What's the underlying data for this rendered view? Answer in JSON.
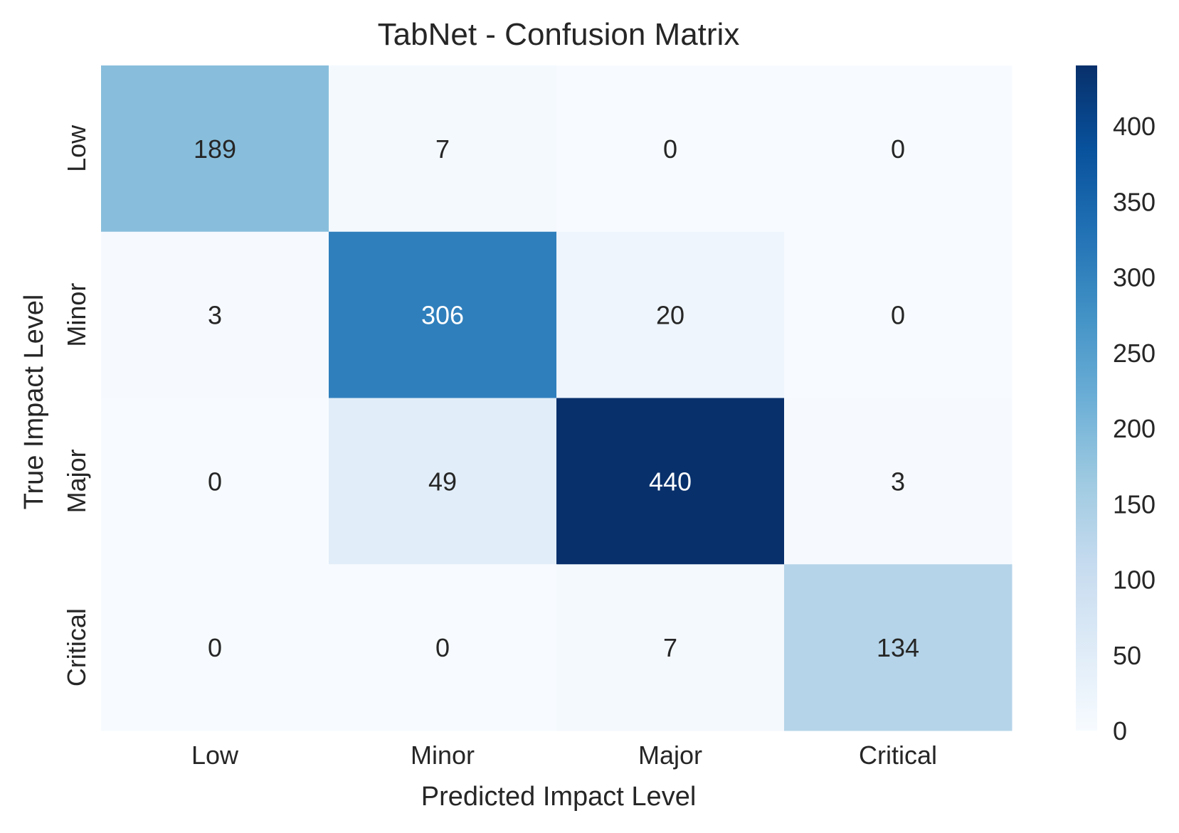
{
  "chart_data": {
    "type": "heatmap",
    "title": "TabNet - Confusion Matrix",
    "xlabel": "Predicted Impact Level",
    "ylabel": "True Impact Level",
    "x_categories": [
      "Low",
      "Minor",
      "Major",
      "Critical"
    ],
    "y_categories": [
      "Low",
      "Minor",
      "Major",
      "Critical"
    ],
    "values": [
      [
        189,
        7,
        0,
        0
      ],
      [
        3,
        306,
        20,
        0
      ],
      [
        0,
        49,
        440,
        3
      ],
      [
        0,
        0,
        7,
        134
      ]
    ],
    "colormap": "Blues",
    "vmin": 0,
    "vmax": 440,
    "colorbar_ticks": [
      0,
      50,
      100,
      150,
      200,
      250,
      300,
      350,
      400
    ],
    "colorbar_tick_labels": [
      "0",
      "50",
      "100",
      "150",
      "200",
      "250",
      "300",
      "350",
      "400"
    ],
    "annotation_colors": {
      "dark_text": "#262626",
      "light_text": "#ffffff"
    }
  }
}
